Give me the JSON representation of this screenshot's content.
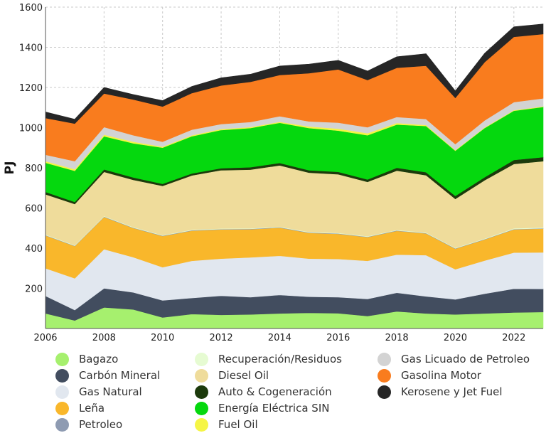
{
  "chart_data": {
    "type": "area",
    "stacked": true,
    "ylabel": "PJ",
    "xlabel": "",
    "xlim": [
      2006,
      2023
    ],
    "ylim": [
      0,
      1600
    ],
    "x_ticks": [
      2006,
      2008,
      2010,
      2012,
      2014,
      2016,
      2018,
      2020,
      2022
    ],
    "y_ticks": [
      200,
      400,
      600,
      800,
      1000,
      1200,
      1400,
      1600
    ],
    "grid": true,
    "legend_position": "bottom",
    "x": [
      2006,
      2007,
      2008,
      2009,
      2010,
      2011,
      2012,
      2013,
      2014,
      2015,
      2016,
      2017,
      2018,
      2019,
      2020,
      2021,
      2022,
      2023
    ],
    "series": [
      {
        "name": "Bagazo",
        "color": "#a6f06e",
        "values": [
          75,
          40,
          105,
          95,
          55,
          72,
          68,
          70,
          75,
          78,
          76,
          62,
          85,
          75,
          70,
          75,
          80,
          82
        ]
      },
      {
        "name": "Carbón Mineral",
        "color": "#424d5f",
        "values": [
          87,
          52,
          95,
          85,
          85,
          80,
          95,
          86,
          92,
          80,
          80,
          85,
          93,
          85,
          75,
          98,
          118,
          115
        ]
      },
      {
        "name": "Gas Natural",
        "color": "#e1e7ef",
        "values": [
          138,
          158,
          195,
          175,
          165,
          185,
          185,
          198,
          195,
          190,
          190,
          190,
          190,
          205,
          150,
          165,
          180,
          182
        ]
      },
      {
        "name": "Leña",
        "color": "#f9b72b",
        "values": [
          163,
          160,
          160,
          145,
          155,
          150,
          145,
          140,
          140,
          128,
          125,
          118,
          118,
          108,
          102,
          105,
          115,
          118
        ]
      },
      {
        "name": "Petroleo",
        "color": "#8e9bb2",
        "values": [
          2,
          2,
          2,
          2,
          2,
          2,
          2,
          2,
          2,
          2,
          2,
          2,
          2,
          2,
          2,
          2,
          2,
          2
        ]
      },
      {
        "name": "Recuperación/Residuos",
        "color": "#e6fbd2",
        "values": [
          3,
          3,
          3,
          3,
          3,
          3,
          3,
          3,
          3,
          3,
          3,
          3,
          3,
          3,
          3,
          3,
          4,
          4
        ]
      },
      {
        "name": "Diesel Oil",
        "color": "#efdc9b",
        "values": [
          200,
          205,
          220,
          235,
          245,
          270,
          290,
          292,
          305,
          295,
          292,
          270,
          295,
          285,
          243,
          290,
          320,
          330
        ]
      },
      {
        "name": "Auto & Cogeneración",
        "color": "#1c3a0c",
        "values": [
          12,
          10,
          12,
          12,
          10,
          10,
          10,
          12,
          12,
          12,
          12,
          12,
          14,
          15,
          15,
          15,
          20,
          20
        ]
      },
      {
        "name": "Energía Eléctrica SIN",
        "color": "#05d80e",
        "values": [
          145,
          155,
          165,
          170,
          180,
          185,
          190,
          195,
          200,
          210,
          205,
          220,
          215,
          230,
          225,
          245,
          245,
          250
        ]
      },
      {
        "name": "Fuel Oil",
        "color": "#f5f545",
        "values": [
          8,
          8,
          8,
          8,
          5,
          5,
          5,
          5,
          5,
          8,
          10,
          10,
          8,
          5,
          3,
          3,
          3,
          3
        ]
      },
      {
        "name": "Gas Licuado de Petroleo",
        "color": "#d3d3d3",
        "values": [
          32,
          40,
          38,
          32,
          25,
          28,
          25,
          25,
          28,
          25,
          30,
          30,
          30,
          30,
          30,
          35,
          40,
          40
        ]
      },
      {
        "name": "Gasolina Motor",
        "color": "#f97c1e",
        "values": [
          183,
          187,
          167,
          178,
          175,
          182,
          192,
          200,
          205,
          240,
          265,
          235,
          245,
          265,
          230,
          290,
          325,
          320
        ]
      },
      {
        "name": "Kerosene y Jet Fuel",
        "color": "#262626",
        "values": [
          30,
          22,
          30,
          25,
          30,
          33,
          38,
          38,
          45,
          45,
          45,
          45,
          55,
          60,
          35,
          44,
          50,
          50
        ]
      }
    ]
  }
}
